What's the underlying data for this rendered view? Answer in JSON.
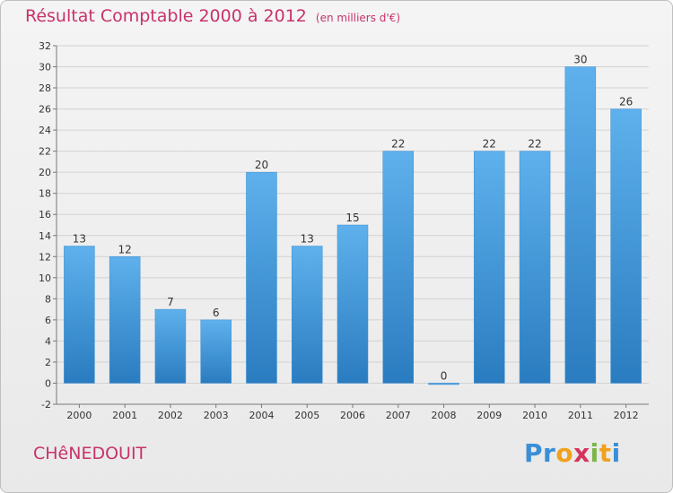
{
  "chart_data": {
    "type": "bar",
    "title": "Résultat Comptable 2000 à 2012",
    "subtitle": "(en milliers d'€)",
    "xlabel": "",
    "ylabel": "",
    "categories": [
      "2000",
      "2001",
      "2002",
      "2003",
      "2004",
      "2005",
      "2006",
      "2007",
      "2008",
      "2009",
      "2010",
      "2011",
      "2012"
    ],
    "values": [
      13,
      12,
      7,
      6,
      20,
      13,
      15,
      22,
      0,
      22,
      22,
      30,
      26
    ],
    "data_labels": [
      "13",
      "12",
      "7",
      "6",
      "20",
      "13",
      "15",
      "22",
      "0",
      "22",
      "22",
      "30",
      "26"
    ],
    "ylim": [
      -2,
      32
    ],
    "yticks": [
      -2,
      0,
      2,
      4,
      6,
      8,
      10,
      12,
      14,
      16,
      18,
      20,
      22,
      24,
      26,
      28,
      30,
      32
    ],
    "grid": true,
    "bar_color": "#4a9ee0"
  },
  "location": "CHêNEDOUIT",
  "logo": {
    "letters": [
      "P",
      "r",
      "o",
      "x",
      "i",
      "t",
      "i"
    ],
    "colors": [
      "#3a8fd6",
      "#3a8fd6",
      "#f0a11d",
      "#d6345c",
      "#7ab648",
      "#f0a11d",
      "#3a8fd6"
    ]
  }
}
